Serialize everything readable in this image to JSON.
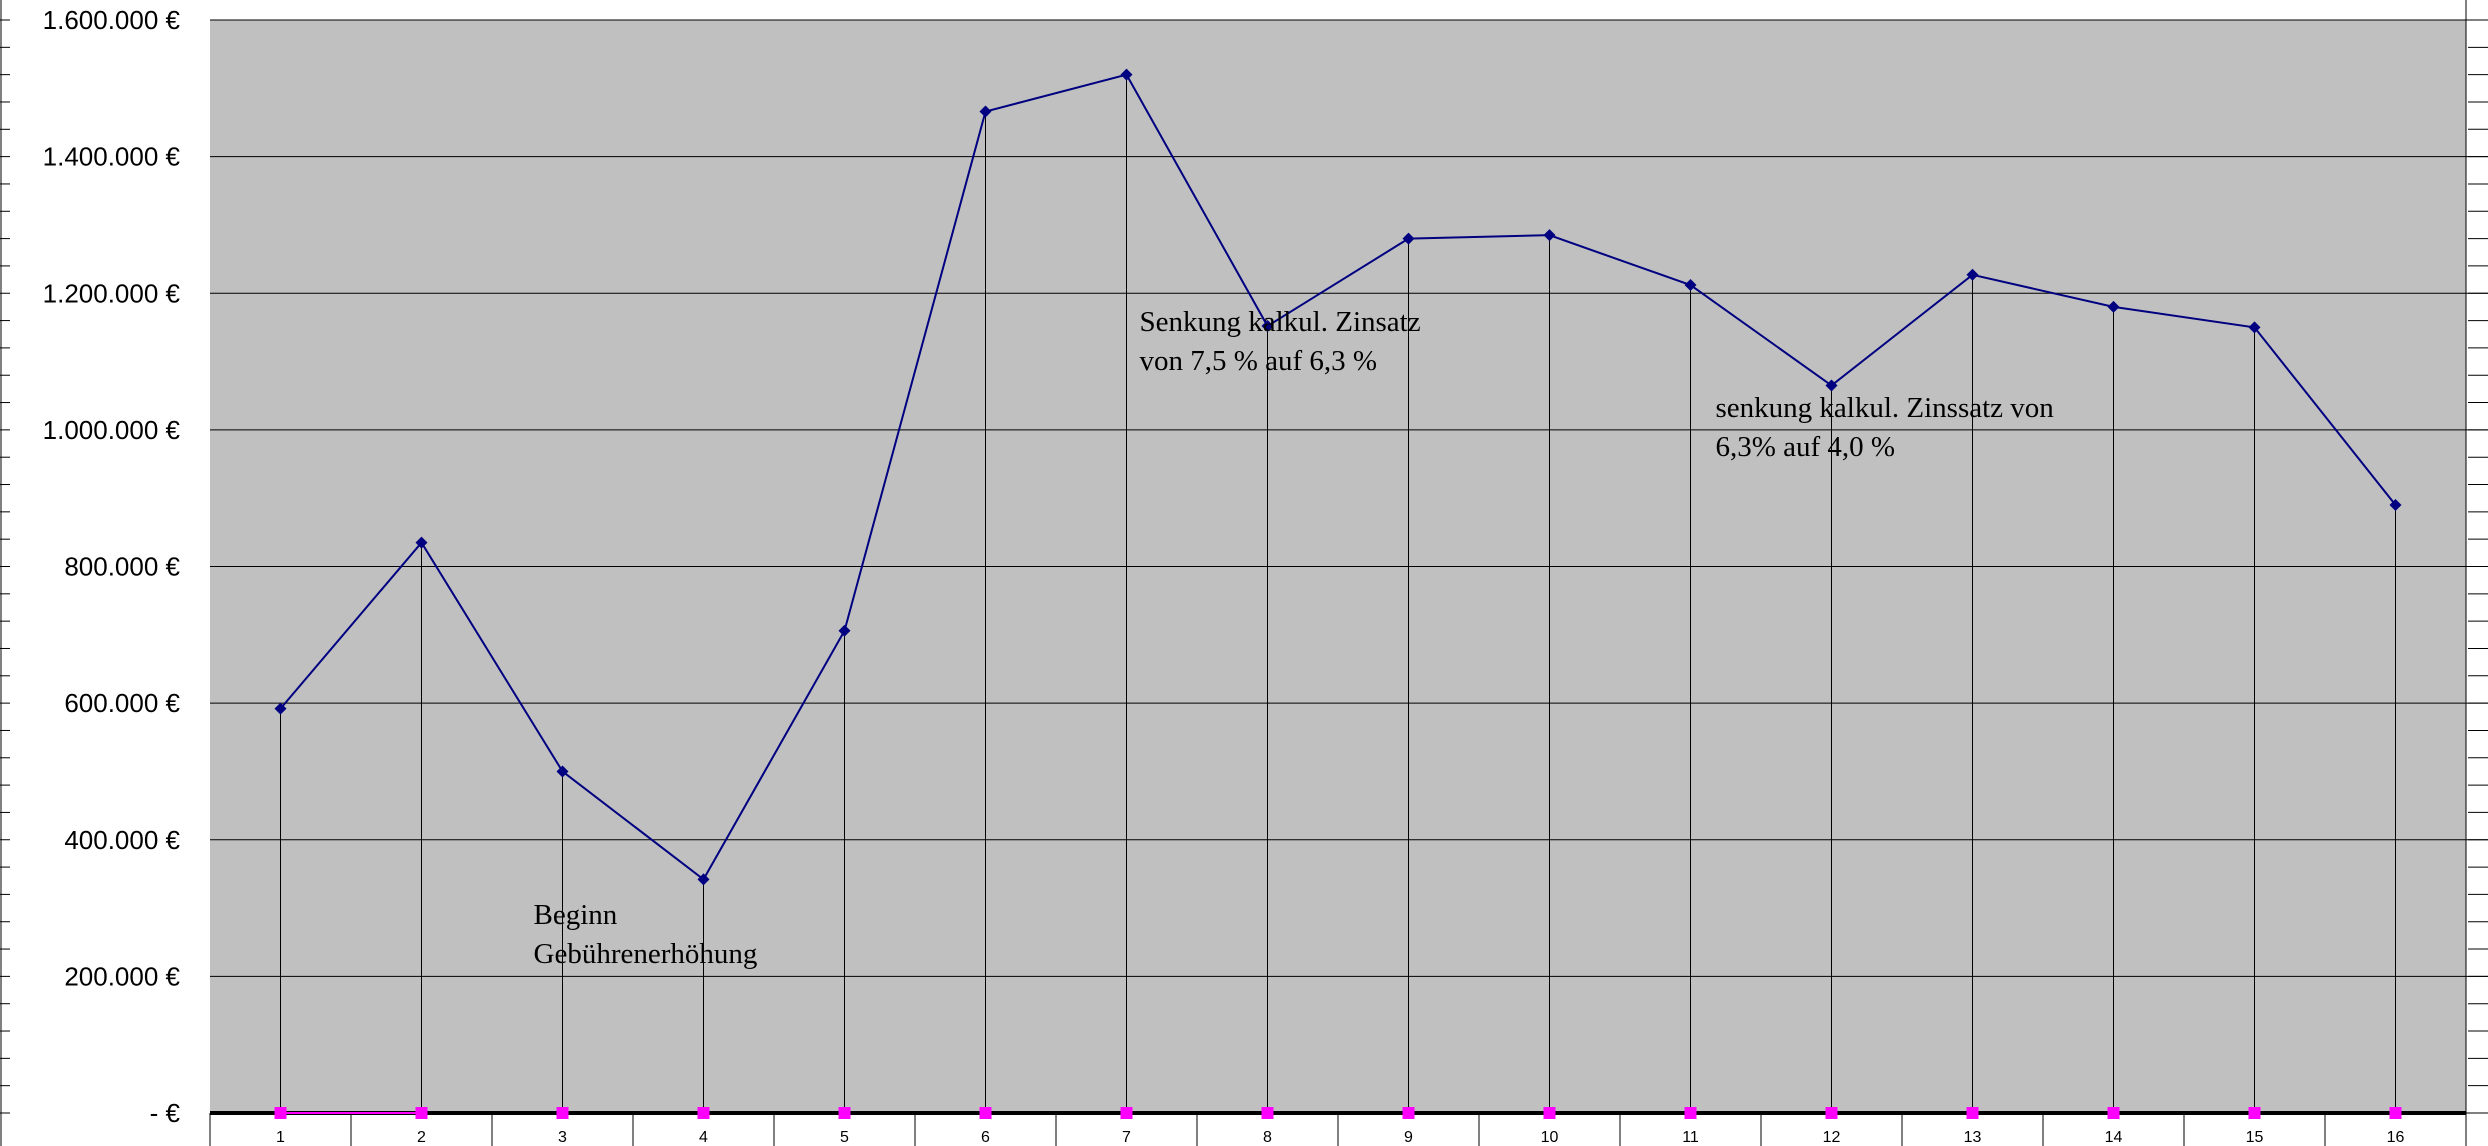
{
  "chart_data": {
    "type": "line",
    "title": "",
    "xlabel": "",
    "ylabel": "",
    "categories": [
      "1",
      "2",
      "3",
      "4",
      "5",
      "6",
      "7",
      "8",
      "9",
      "10",
      "11",
      "12",
      "13",
      "14",
      "15",
      "16"
    ],
    "series": [
      {
        "values": [
          592000,
          835000,
          500000,
          342000,
          706000,
          1466000,
          1520000,
          1152000,
          1280000,
          1285000,
          1212000,
          1065000,
          1227000,
          1180000,
          1150000,
          890000
        ],
        "color": "#000080",
        "marker": "diamond"
      },
      {
        "values": [
          0,
          0,
          0,
          0,
          0,
          0,
          0,
          0,
          0,
          0,
          0,
          0,
          0,
          0,
          0,
          0
        ],
        "color": "#ff00ff",
        "marker": "square"
      }
    ],
    "ylim": [
      0,
      1600000
    ],
    "yticks": [
      0,
      200000,
      400000,
      600000,
      800000,
      1000000,
      1200000,
      1400000,
      1600000
    ],
    "ytick_labels": [
      "- €",
      "200.000 €",
      "400.000 €",
      "600.000 €",
      "800.000 €",
      "1.000.000 €",
      "1.200.000 €",
      "1.400.000 €",
      "1.600.000 €"
    ],
    "grid": true,
    "drop_lines": true,
    "plot_background": "#c0c0c0",
    "annotations": [
      {
        "lines": [
          "Beginn",
          "Gebührenerhöhung"
        ],
        "x": "3",
        "y": 250000
      },
      {
        "lines": [
          "Senkung kalkul. Zinsatz",
          "von 7,5 % auf 6,3 %"
        ],
        "x": "7",
        "y": 1110000
      },
      {
        "lines": [
          "senkung kalkul. Zinssatz von",
          "6,3% auf 4,0 %"
        ],
        "x": "11",
        "y": 983000
      }
    ]
  }
}
